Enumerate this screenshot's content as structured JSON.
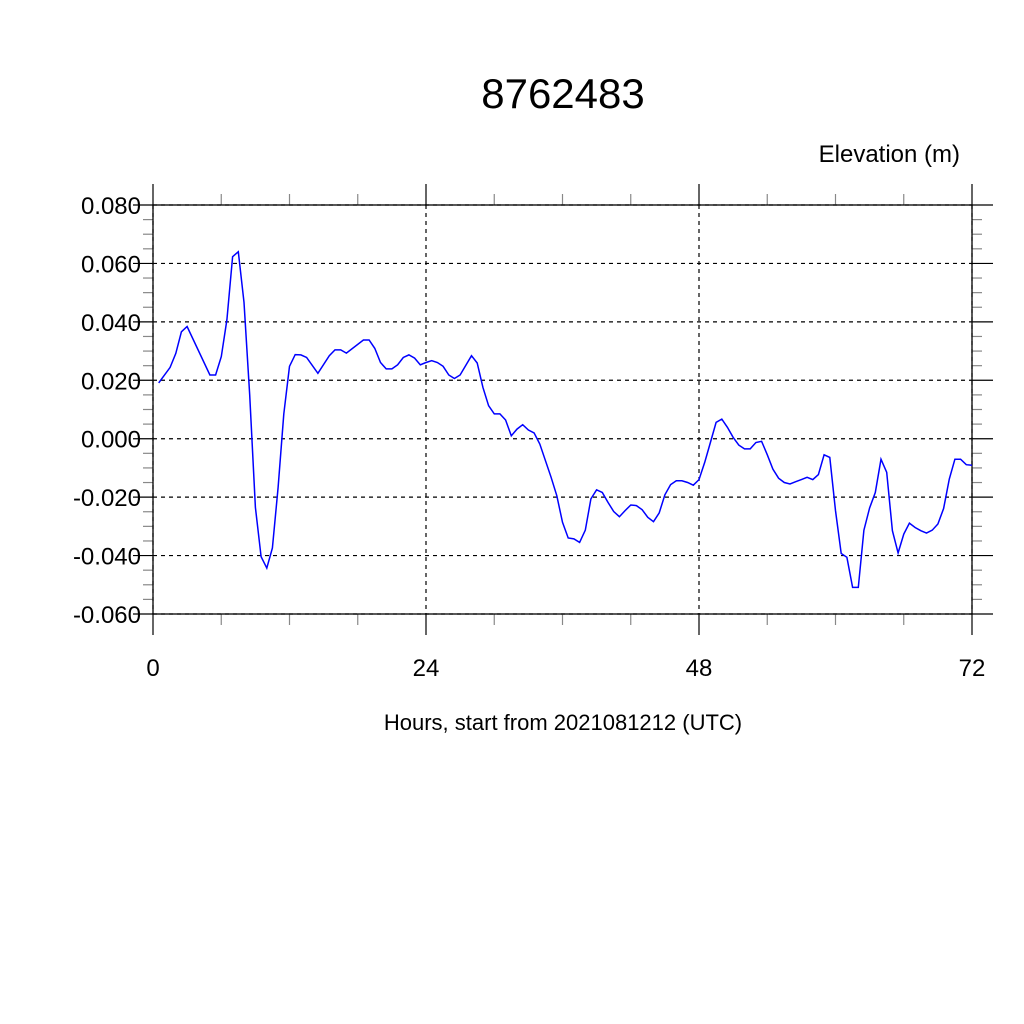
{
  "chart_data": {
    "type": "line",
    "title": "8762483",
    "ylabel": "Elevation (m)",
    "xlabel": "Hours, start from 2021081212 (UTC)",
    "xlim": [
      0,
      72
    ],
    "ylim": [
      -0.06,
      0.08
    ],
    "x_ticks": [
      0,
      24,
      48,
      72
    ],
    "x_tick_labels": [
      "0",
      "24",
      "48",
      "72"
    ],
    "y_ticks": [
      -0.06,
      -0.04,
      -0.02,
      0.0,
      0.02,
      0.04,
      0.06,
      0.08
    ],
    "y_tick_labels": [
      "-0.060",
      "-0.040",
      "-0.020",
      "0.000",
      "0.020",
      "0.040",
      "0.060",
      "0.080"
    ],
    "grid": true,
    "line_color": "#0000ff",
    "series": [
      {
        "x": [
          0.5,
          1.5,
          2,
          2.5,
          3,
          5,
          5.5,
          6,
          6.5,
          7,
          7.5,
          8,
          8.5,
          9,
          9.5,
          10,
          10.5,
          11,
          11.5,
          12,
          12.5,
          13,
          13.5,
          14.5,
          15.5,
          16,
          16.5,
          17,
          18.5,
          19,
          19.5,
          20,
          20.5,
          21,
          21.5,
          22,
          22.5,
          23,
          23.5,
          24,
          24.5,
          25,
          25.5,
          26,
          26.5,
          27,
          28,
          28.5,
          29,
          29.5,
          30,
          30.5,
          31,
          31.5,
          32,
          32.5,
          33,
          33.5,
          34,
          35,
          35.5,
          36,
          36.5,
          37,
          37.5,
          38,
          38.5,
          39,
          39.5,
          40,
          40.5,
          41,
          41.5,
          42,
          42.5,
          43,
          43.5,
          44,
          44.5,
          45,
          45.5,
          46,
          46.5,
          47,
          47.5,
          48,
          48.5,
          49,
          49.5,
          50,
          50.5,
          51,
          51.5,
          52,
          52.5,
          53,
          53.5,
          54,
          54.5,
          55,
          55.5,
          56,
          56.5,
          57,
          57.5,
          58,
          58.5,
          59,
          59.5,
          60,
          60.5,
          61,
          61.5,
          62,
          62.5,
          63,
          63.5,
          64,
          64.5,
          65,
          65.5,
          66,
          66.5,
          67,
          67.5,
          68,
          68.5,
          69,
          69.5,
          70,
          70.5,
          71,
          71.5,
          72
        ],
        "y": [
          0.0191,
          0.0244,
          0.0292,
          0.0366,
          0.0384,
          0.0218,
          0.0218,
          0.0281,
          0.0407,
          0.0623,
          0.064,
          0.0467,
          0.015,
          -0.0235,
          -0.0404,
          -0.0443,
          -0.0374,
          -0.0167,
          0.0085,
          0.0248,
          0.0288,
          0.0287,
          0.0278,
          0.0224,
          0.0284,
          0.0304,
          0.0304,
          0.0293,
          0.0338,
          0.0338,
          0.0309,
          0.0261,
          0.0239,
          0.0239,
          0.0253,
          0.0278,
          0.0287,
          0.0276,
          0.0253,
          0.0261,
          0.0267,
          0.0261,
          0.0248,
          0.0218,
          0.0206,
          0.0218,
          0.0284,
          0.0259,
          0.0176,
          0.0113,
          0.0085,
          0.0085,
          0.0064,
          0.001,
          0.0033,
          0.0048,
          0.003,
          0.002,
          -0.0018,
          -0.0132,
          -0.0195,
          -0.0286,
          -0.034,
          -0.0343,
          -0.0355,
          -0.0313,
          -0.0206,
          -0.0175,
          -0.0184,
          -0.0218,
          -0.0249,
          -0.0267,
          -0.0246,
          -0.0227,
          -0.0229,
          -0.0243,
          -0.0269,
          -0.0284,
          -0.0254,
          -0.0192,
          -0.0157,
          -0.0144,
          -0.0144,
          -0.015,
          -0.0159,
          -0.014,
          -0.0081,
          -0.0013,
          0.0056,
          0.0067,
          0.0039,
          0.0005,
          -0.0022,
          -0.0035,
          -0.0035,
          -0.0013,
          -0.0009,
          -0.0055,
          -0.0104,
          -0.0135,
          -0.015,
          -0.0155,
          -0.0147,
          -0.014,
          -0.0132,
          -0.014,
          -0.0123,
          -0.0055,
          -0.0064,
          -0.0246,
          -0.0393,
          -0.0406,
          -0.0509,
          -0.0509,
          -0.0313,
          -0.0237,
          -0.0184,
          -0.007,
          -0.0115,
          -0.0315,
          -0.0391,
          -0.0326,
          -0.0289,
          -0.0304,
          -0.0315,
          -0.0323,
          -0.0313,
          -0.0292,
          -0.0239,
          -0.0138,
          -0.007,
          -0.007,
          -0.0089,
          -0.0091
        ]
      }
    ]
  }
}
